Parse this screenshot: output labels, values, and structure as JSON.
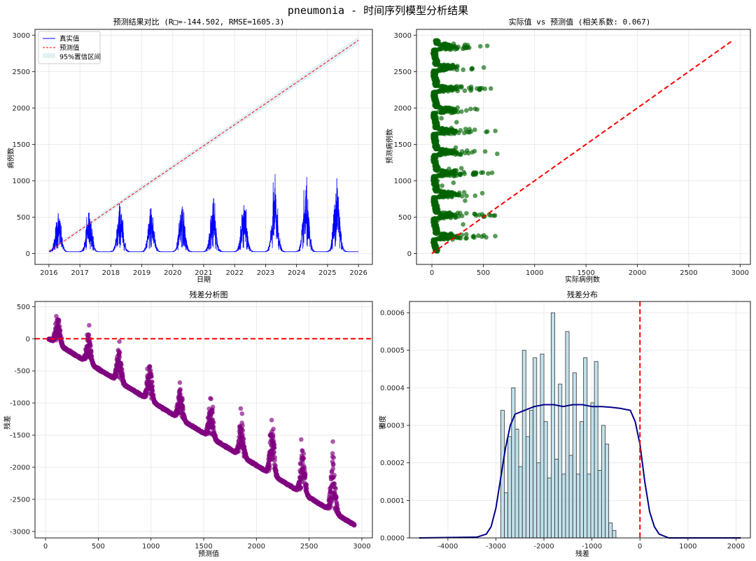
{
  "figure": {
    "title": "pneumonia - 时间序列模型分析结果"
  },
  "chart_data": [
    {
      "type": "line",
      "title": "预测结果对比 (R□=-144.502, RMSE=1605.3)",
      "xlabel": "日期",
      "ylabel": "病例数",
      "xlim": [
        2015.55,
        2026.45
      ],
      "ylim": [
        -150,
        3080
      ],
      "x_ticks": [
        "2016",
        "2017",
        "2018",
        "2019",
        "2020",
        "2021",
        "2022",
        "2023",
        "2024",
        "2025",
        "2026"
      ],
      "y_ticks": [
        0,
        500,
        1000,
        1500,
        2000,
        2500,
        3000
      ],
      "legend": {
        "position": "top-left",
        "entries": [
          "真实值",
          "预测值",
          "95%置信区间"
        ]
      },
      "colors": {
        "actual": "#0000ff",
        "predicted": "#ff0000",
        "ci": "#add8e6"
      },
      "series": [
        {
          "name": "真实值",
          "style": "solid",
          "seasonal_peaks": [
            {
              "x": 2016.3,
              "y": 550
            },
            {
              "x": 2017.3,
              "y": 560
            },
            {
              "x": 2018.3,
              "y": 640
            },
            {
              "x": 2019.3,
              "y": 620
            },
            {
              "x": 2020.3,
              "y": 620
            },
            {
              "x": 2021.3,
              "y": 690
            },
            {
              "x": 2022.3,
              "y": 660
            },
            {
              "x": 2023.3,
              "y": 900
            },
            {
              "x": 2024.3,
              "y": 870
            },
            {
              "x": 2025.3,
              "y": 1030
            }
          ],
          "baseline": 25
        },
        {
          "name": "预测值",
          "style": "dashed",
          "x": [
            2016.0,
            2026.0
          ],
          "y": [
            30,
            2930
          ]
        },
        {
          "name": "95%置信区间",
          "style": "band",
          "x": [
            2016.0,
            2026.0
          ],
          "lower": [
            0,
            2880
          ],
          "upper": [
            60,
            2980
          ]
        }
      ]
    },
    {
      "type": "scatter",
      "title": "实际值 vs 预测值 (相关系数: 0.067)",
      "xlabel": "实际病例数",
      "ylabel": "预测病例数",
      "xlim": [
        -150,
        3100
      ],
      "ylim": [
        -150,
        3080
      ],
      "x_ticks": [
        0,
        500,
        1000,
        1500,
        2000,
        2500,
        3000
      ],
      "y_ticks": [
        0,
        500,
        1000,
        1500,
        2000,
        2500,
        3000
      ],
      "colors": {
        "points": "#006400",
        "reference": "#ff0000"
      },
      "reference_line": {
        "x": [
          0,
          2930
        ],
        "y": [
          0,
          2930
        ]
      },
      "predicted_range": [
        30,
        2930
      ],
      "annual_step": 290
    },
    {
      "type": "scatter",
      "title": "残差分析图",
      "xlabel": "预测值",
      "ylabel": "残差",
      "xlim": [
        -100,
        3100
      ],
      "ylim": [
        -3100,
        580
      ],
      "x_ticks": [
        0,
        500,
        1000,
        1500,
        2000,
        2500,
        3000
      ],
      "y_ticks": [
        500,
        0,
        -500,
        -1000,
        -1500,
        -2000,
        -2500,
        -3000
      ],
      "colors": {
        "points": "#800080",
        "zero_line": "#ff0000"
      },
      "zero_line": 0
    },
    {
      "type": "bar",
      "title": "残差分布",
      "xlabel": "残差",
      "ylabel": "密度",
      "xlim": [
        -4800,
        2300
      ],
      "ylim": [
        0,
        0.00063
      ],
      "x_ticks": [
        -4000,
        -3000,
        -2000,
        -1000,
        0,
        1000,
        2000
      ],
      "y_ticks": [
        0.0,
        0.0001,
        0.0002,
        0.0003,
        0.0004,
        0.0005,
        0.0006
      ],
      "colors": {
        "bars": "#add8e6",
        "edge": "#333333",
        "kde": "#00008b",
        "zero_line": "#ff0000"
      },
      "bin_start": -2900,
      "bin_width": 75,
      "values": [
        0.00034,
        0.00012,
        0.00027,
        0.0004,
        0.00029,
        0.00019,
        0.0005,
        0.00027,
        0.00034,
        0.00048,
        0.0002,
        0.00049,
        0.00031,
        0.00016,
        0.0006,
        0.00021,
        0.00041,
        0.00017,
        0.00055,
        0.00022,
        0.00044,
        0.00017,
        0.00031,
        0.00048,
        0.00017,
        0.00036,
        0.00047,
        0.00018,
        0.0003,
        0.00025,
        4e-05,
        2e-05
      ],
      "kde": {
        "x": [
          -4600,
          -3400,
          -3200,
          -3100,
          -3000,
          -2900,
          -2800,
          -2700,
          -2600,
          -2400,
          -2200,
          -2000,
          -1800,
          -1600,
          -1400,
          -1200,
          -1000,
          -800,
          -600,
          -400,
          -200,
          -100,
          0,
          100,
          200,
          300,
          400,
          600,
          2100
        ],
        "y": [
          0,
          2e-06,
          1e-05,
          3e-05,
          8e-05,
          0.00016,
          0.00024,
          0.0003,
          0.00033,
          0.00034,
          0.00035,
          0.000355,
          0.000355,
          0.00035,
          0.000355,
          0.000355,
          0.00035,
          0.00035,
          0.000348,
          0.000345,
          0.00034,
          0.00031,
          0.00025,
          0.00015,
          7e-05,
          3e-05,
          1e-05,
          0,
          0
        ]
      },
      "zero_line": 0
    }
  ]
}
